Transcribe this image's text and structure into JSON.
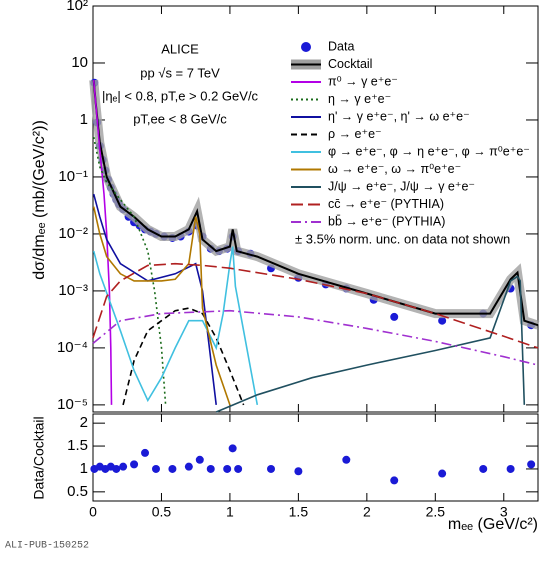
{
  "chart_data": [
    {
      "type": "line",
      "log_y": true,
      "ylabel": "dσ/dmₑₑ (mb/(GeV/c²))",
      "annotations": [
        "ALICE",
        "pp √s = 7 TeV",
        "|ηₑ| < 0.8, pT,e > 0.2 GeV/c",
        "pT,ee < 8 GeV/c",
        "± 3.5% norm. unc. on data not shown"
      ],
      "xlim": [
        0,
        3.25
      ],
      "xticks": [
        0,
        0.5,
        1,
        1.5,
        2,
        2.5,
        3
      ],
      "ylim": [
        7.5e-06,
        100
      ],
      "yticks": [
        {
          "value": 100,
          "label": "10²"
        },
        10,
        1,
        {
          "value": 0.1,
          "label": "10⁻¹"
        },
        {
          "value": 0.01,
          "label": "10⁻²"
        },
        {
          "value": 0.001,
          "label": "10⁻³"
        },
        {
          "value": 0.0001,
          "label": "10⁻⁴"
        },
        {
          "value": 1e-05,
          "label": "10⁻⁵"
        }
      ],
      "series": [
        {
          "name": "Data",
          "color": "#1a1ad6",
          "marker": "circle",
          "x": [
            0.01,
            0.03,
            0.05,
            0.07,
            0.09,
            0.11,
            0.13,
            0.15,
            0.17,
            0.19,
            0.22,
            0.26,
            0.3,
            0.34,
            0.38,
            0.42,
            0.46,
            0.52,
            0.58,
            0.64,
            0.7,
            0.76,
            0.8,
            0.86,
            0.92,
            0.98,
            1.02,
            1.06,
            1.15,
            1.3,
            1.5,
            1.7,
            1.85,
            2.05,
            2.2,
            2.55,
            2.85,
            3.05,
            3.2
          ],
          "values": [
            4.5,
            0.9,
            0.35,
            0.2,
            0.13,
            0.09,
            0.065,
            0.05,
            0.04,
            0.033,
            0.027,
            0.02,
            0.016,
            0.014,
            0.012,
            0.011,
            0.01,
            0.009,
            0.0085,
            0.009,
            0.011,
            0.014,
            0.009,
            0.0055,
            0.005,
            0.0055,
            0.009,
            0.005,
            0.0045,
            0.0025,
            0.0017,
            0.0013,
            0.0011,
            0.0007,
            0.00035,
            0.0003,
            0.0004,
            0.0011,
            0.00025
          ]
        },
        {
          "name": "Cocktail",
          "color": "#000000",
          "dash": "solid",
          "band": "#a0a0a0",
          "x": [
            0.005,
            0.02,
            0.05,
            0.1,
            0.2,
            0.3,
            0.4,
            0.5,
            0.6,
            0.7,
            0.76,
            0.8,
            0.9,
            1.0,
            1.02,
            1.05,
            1.2,
            1.5,
            2.0,
            2.5,
            2.9,
            3.05,
            3.1,
            3.15,
            3.25
          ],
          "values": [
            5,
            2,
            0.4,
            0.1,
            0.03,
            0.02,
            0.012,
            0.009,
            0.009,
            0.012,
            0.025,
            0.008,
            0.005,
            0.006,
            0.012,
            0.005,
            0.004,
            0.002,
            0.0009,
            0.0004,
            0.0004,
            0.0016,
            0.0021,
            0.0003,
            0.00025
          ]
        },
        {
          "name": "π⁰ → γ e⁺e⁻",
          "color": "#b300e6",
          "dash": "solid",
          "x": [
            0.005,
            0.02,
            0.05,
            0.08,
            0.1,
            0.12,
            0.13,
            0.135
          ],
          "values": [
            5,
            2,
            0.3,
            0.05,
            0.01,
            0.001,
            0.0001,
            1e-05
          ]
        },
        {
          "name": "η → γ e⁺e⁻",
          "color": "#1a6b1a",
          "dash": "dot",
          "x": [
            0.005,
            0.05,
            0.1,
            0.2,
            0.3,
            0.4,
            0.45,
            0.5,
            0.53
          ],
          "values": [
            0.5,
            0.15,
            0.08,
            0.04,
            0.02,
            0.005,
            0.001,
            0.0001,
            1e-05
          ]
        },
        {
          "name": "η' → γ e⁺e⁻, η' → ω e⁺e⁻",
          "color": "#1010a0",
          "dash": "solid",
          "x": [
            0.005,
            0.05,
            0.1,
            0.2,
            0.4,
            0.6,
            0.75,
            0.8,
            0.85,
            0.9
          ],
          "values": [
            0.05,
            0.02,
            0.008,
            0.003,
            0.0015,
            0.002,
            0.003,
            0.001,
            0.0001,
            1e-05
          ]
        },
        {
          "name": "ρ → e⁺e⁻",
          "color": "#000000",
          "dash": "dash",
          "x": [
            0.22,
            0.3,
            0.4,
            0.5,
            0.6,
            0.7,
            0.8,
            0.9,
            1.0,
            1.1
          ],
          "values": [
            1e-05,
            6e-05,
            0.0002,
            0.0003,
            0.00045,
            0.0005,
            0.0004,
            0.00015,
            4e-05,
            1e-05
          ]
        },
        {
          "name": "φ → e⁺e⁻, φ → η e⁺e⁻, φ → π⁰e⁺e⁻",
          "color": "#40c0e0",
          "dash": "solid",
          "x": [
            0.005,
            0.05,
            0.2,
            0.3,
            0.4,
            0.5,
            0.6,
            0.7,
            0.8,
            0.9,
            0.95,
            1.0,
            1.02,
            1.04,
            1.1,
            1.2
          ],
          "values": [
            0.005,
            0.002,
            0.0002,
            4e-05,
            1.2e-05,
            3e-05,
            0.0001,
            0.0003,
            0.0003,
            0.0001,
            0.0004,
            0.003,
            0.006,
            0.0012,
            0.0002,
            1e-05
          ]
        },
        {
          "name": "ω → e⁺e⁻, ω → π⁰e⁺e⁻",
          "color": "#b07800",
          "dash": "solid",
          "x": [
            0.005,
            0.05,
            0.1,
            0.2,
            0.3,
            0.5,
            0.6,
            0.7,
            0.75,
            0.78,
            0.8,
            0.9,
            1.0
          ],
          "values": [
            0.03,
            0.01,
            0.004,
            0.002,
            0.0015,
            0.0015,
            0.0016,
            0.003,
            0.02,
            0.01,
            0.0005,
            5e-05,
            1e-05
          ]
        },
        {
          "name": "J/ψ → e⁺e⁻, J/ψ → γ e⁺e⁻",
          "color": "#205060",
          "dash": "solid",
          "x": [
            0.9,
            1.2,
            1.6,
            2.0,
            2.5,
            2.9,
            3.05,
            3.1,
            3.12,
            3.15
          ],
          "values": [
            6e-06,
            1.5e-05,
            3e-05,
            5e-05,
            9e-05,
            0.00015,
            0.0015,
            0.0018,
            0.0015,
            1e-05
          ]
        },
        {
          "name": "cc̄ → e⁺e⁻ (PYTHIA)",
          "color": "#b02020",
          "dash": "longdash",
          "x": [
            0,
            0.1,
            0.2,
            0.4,
            0.6,
            0.8,
            1.0,
            1.5,
            2.0,
            2.5,
            3.0,
            3.25
          ],
          "values": [
            0.00015,
            0.0008,
            0.0015,
            0.0028,
            0.003,
            0.0028,
            0.0025,
            0.0016,
            0.0009,
            0.0004,
            0.00016,
            0.0001
          ]
        },
        {
          "name": "bb̄ → e⁺e⁻ (PYTHIA)",
          "color": "#a030d0",
          "dash": "dashdot",
          "x": [
            0,
            0.2,
            0.5,
            1.0,
            1.5,
            2.0,
            2.5,
            3.0,
            3.25
          ],
          "values": [
            0.00012,
            0.0003,
            0.0004,
            0.00045,
            0.00035,
            0.00022,
            0.00013,
            7e-05,
            5e-05
          ]
        }
      ]
    },
    {
      "type": "scatter",
      "xlabel": "mₑₑ (GeV/c²)",
      "ylabel": "Data/Cocktail",
      "xlim": [
        0,
        3.25
      ],
      "xticks": [
        0,
        0.5,
        1,
        1.5,
        2,
        2.5,
        3
      ],
      "ylim": [
        0.3,
        2.2
      ],
      "yticks": [
        0.5,
        1,
        1.5,
        2
      ],
      "color": "#1a1ad6",
      "x": [
        0.01,
        0.05,
        0.09,
        0.13,
        0.17,
        0.22,
        0.3,
        0.38,
        0.46,
        0.58,
        0.7,
        0.78,
        0.86,
        0.98,
        1.02,
        1.06,
        1.3,
        1.5,
        1.85,
        2.2,
        2.55,
        2.85,
        3.05,
        3.2
      ],
      "values": [
        1.0,
        1.05,
        1.0,
        1.05,
        1.0,
        1.05,
        1.1,
        1.35,
        1.0,
        1.0,
        1.05,
        1.2,
        1.0,
        1.0,
        1.45,
        1.0,
        1.0,
        0.95,
        1.2,
        0.75,
        0.9,
        1.0,
        1.0,
        1.1
      ]
    }
  ],
  "footer": "ALI-PUB-150252"
}
